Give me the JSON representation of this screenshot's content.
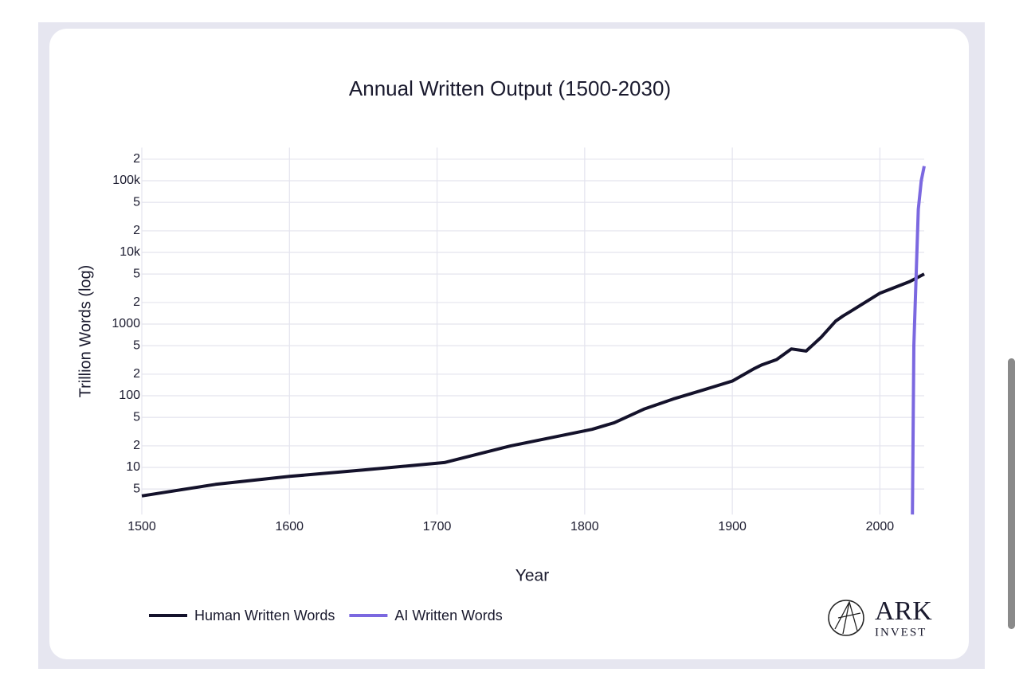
{
  "chart_data": {
    "type": "line",
    "title": "Annual Written Output (1500-2030)",
    "xlabel": "Year",
    "ylabel": "Trillion Words (log)",
    "log_y": true,
    "grid": true,
    "legend": "bottom-left",
    "xlim": [
      1500,
      2030
    ],
    "xticks": [
      1500,
      1600,
      1700,
      1800,
      1900,
      2000
    ],
    "ylim": [
      2.2,
      290000
    ],
    "yticks": [
      {
        "value": 5,
        "label": "5"
      },
      10,
      {
        "value": 20,
        "label": "2"
      },
      {
        "value": 50,
        "label": "5"
      },
      100,
      {
        "value": 200,
        "label": "2"
      },
      {
        "value": 500,
        "label": "5"
      },
      1000,
      {
        "value": 2000,
        "label": "2"
      },
      {
        "value": 5000,
        "label": "5"
      },
      {
        "value": 10000,
        "label": "10k"
      },
      {
        "value": 20000,
        "label": "2"
      },
      {
        "value": 50000,
        "label": "5"
      },
      {
        "value": 100000,
        "label": "100k"
      },
      {
        "value": 200000,
        "label": "2"
      }
    ],
    "series": [
      {
        "name": "Human Written Words",
        "color": "#14122b",
        "x": [
          1500,
          1550,
          1600,
          1650,
          1705,
          1750,
          1805,
          1820,
          1840,
          1860,
          1880,
          1900,
          1915,
          1920,
          1930,
          1940,
          1950,
          1960,
          1970,
          1975,
          1980,
          2000,
          2020,
          2030
        ],
        "values": [
          4,
          5.8,
          7.5,
          9.2,
          11.7,
          20,
          34,
          42,
          65,
          90,
          120,
          160,
          240,
          270,
          320,
          450,
          420,
          650,
          1100,
          1300,
          1500,
          2700,
          3900,
          5000
        ]
      },
      {
        "name": "AI Written Words",
        "color": "#7b68e0",
        "x": [
          2022,
          2023,
          2026,
          2028,
          2030
        ],
        "values": [
          2.2,
          500,
          40000,
          100000,
          160000
        ]
      }
    ],
    "brand": {
      "name": "ARK",
      "sub": "INVEST"
    }
  }
}
